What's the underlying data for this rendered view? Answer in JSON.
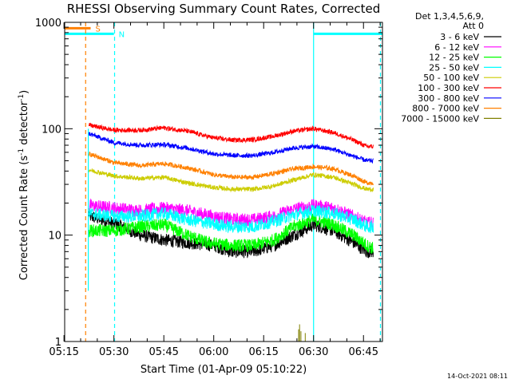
{
  "chart_data": {
    "type": "line",
    "title": "RHESSI Observing Summary Count Rates, Corrected",
    "xlabel": "Start Time (01-Apr-09 05:10:22)",
    "ylabel_main": "Corrected Count Rate (s",
    "ylabel_sup1": "-1",
    "ylabel_mid": " detector",
    "ylabel_sup2": "-1",
    "ylabel_end": ")",
    "y_scale": "log",
    "ylim": [
      1,
      1000
    ],
    "xlim_minutes": [
      5.2,
      100.7
    ],
    "x_ticks": [
      {
        "m": 5,
        "label": "05:15"
      },
      {
        "m": 20,
        "label": "05:30"
      },
      {
        "m": 35,
        "label": "05:45"
      },
      {
        "m": 50,
        "label": "06:00"
      },
      {
        "m": 65,
        "label": "06:15"
      },
      {
        "m": 80,
        "label": "06:30"
      },
      {
        "m": 95,
        "label": "06:45"
      }
    ],
    "y_ticks": [
      {
        "v": 1,
        "label": "1"
      },
      {
        "v": 10,
        "label": "10"
      },
      {
        "v": 100,
        "label": "100"
      },
      {
        "v": 1000,
        "label": "1000"
      }
    ],
    "legend_header": [
      "Det 1,3,4,5,6,9,",
      "Att 0"
    ],
    "legend_placement": "right",
    "series": [
      {
        "name": "3 - 6 keV",
        "color": "#000000",
        "points": [
          [
            12.5,
            16
          ],
          [
            13,
            15
          ],
          [
            20,
            13
          ],
          [
            28,
            10
          ],
          [
            35,
            9
          ],
          [
            42,
            8.5
          ],
          [
            50,
            8
          ],
          [
            55,
            7
          ],
          [
            62,
            7
          ],
          [
            68,
            8
          ],
          [
            74,
            10
          ],
          [
            80,
            12.5
          ],
          [
            86,
            11
          ],
          [
            92,
            8.5
          ],
          [
            96,
            7
          ],
          [
            98,
            7
          ]
        ]
      },
      {
        "name": "6 - 12 keV",
        "color": "#ff00ff",
        "points": [
          [
            12.5,
            19
          ],
          [
            20,
            18
          ],
          [
            28,
            17
          ],
          [
            35,
            18
          ],
          [
            42,
            17
          ],
          [
            50,
            15
          ],
          [
            56,
            14
          ],
          [
            62,
            14
          ],
          [
            68,
            15
          ],
          [
            74,
            17.5
          ],
          [
            80,
            19
          ],
          [
            86,
            18
          ],
          [
            92,
            15
          ],
          [
            96,
            13
          ],
          [
            98,
            13
          ]
        ]
      },
      {
        "name": "12 - 25 keV",
        "color": "#00ff00",
        "points": [
          [
            12.5,
            11
          ],
          [
            20,
            11
          ],
          [
            28,
            12
          ],
          [
            35,
            12.5
          ],
          [
            42,
            10
          ],
          [
            48,
            8.5
          ],
          [
            55,
            8
          ],
          [
            62,
            8
          ],
          [
            68,
            9
          ],
          [
            74,
            12
          ],
          [
            80,
            14
          ],
          [
            86,
            12.5
          ],
          [
            92,
            10
          ],
          [
            96,
            8
          ],
          [
            98,
            7.5
          ]
        ]
      },
      {
        "name": "25 - 50 keV",
        "color": "#00ffff",
        "points": [
          [
            12.5,
            16
          ],
          [
            20,
            15
          ],
          [
            28,
            15
          ],
          [
            35,
            16
          ],
          [
            42,
            14
          ],
          [
            48,
            13
          ],
          [
            55,
            12
          ],
          [
            62,
            12
          ],
          [
            68,
            13.5
          ],
          [
            74,
            15.5
          ],
          [
            80,
            17
          ],
          [
            86,
            16
          ],
          [
            92,
            14
          ],
          [
            96,
            12
          ],
          [
            98,
            12
          ]
        ]
      },
      {
        "name": "50 - 100 keV",
        "color": "#cccc00",
        "points": [
          [
            12.5,
            41
          ],
          [
            20,
            36
          ],
          [
            28,
            34
          ],
          [
            35,
            35
          ],
          [
            42,
            31
          ],
          [
            50,
            28
          ],
          [
            56,
            27
          ],
          [
            62,
            27
          ],
          [
            68,
            29
          ],
          [
            74,
            33
          ],
          [
            80,
            37
          ],
          [
            86,
            35
          ],
          [
            92,
            30
          ],
          [
            96,
            27
          ],
          [
            98,
            27
          ]
        ]
      },
      {
        "name": "100 - 300 keV",
        "color": "#ff0000",
        "points": [
          [
            12.5,
            108
          ],
          [
            20,
            97
          ],
          [
            28,
            97
          ],
          [
            35,
            102
          ],
          [
            42,
            95
          ],
          [
            50,
            82
          ],
          [
            56,
            78
          ],
          [
            62,
            79
          ],
          [
            68,
            85
          ],
          [
            74,
            95
          ],
          [
            80,
            100
          ],
          [
            86,
            92
          ],
          [
            92,
            78
          ],
          [
            96,
            68
          ],
          [
            98,
            68
          ]
        ]
      },
      {
        "name": "300 - 800 keV",
        "color": "#0000ff",
        "points": [
          [
            12.5,
            90
          ],
          [
            20,
            74
          ],
          [
            28,
            70
          ],
          [
            35,
            71
          ],
          [
            42,
            66
          ],
          [
            50,
            58
          ],
          [
            56,
            56
          ],
          [
            62,
            56
          ],
          [
            68,
            60
          ],
          [
            74,
            66
          ],
          [
            80,
            68
          ],
          [
            86,
            64
          ],
          [
            92,
            55
          ],
          [
            96,
            50
          ],
          [
            98,
            50
          ]
        ]
      },
      {
        "name": "800 - 7000 keV",
        "color": "#ff8000",
        "points": [
          [
            12.5,
            58
          ],
          [
            20,
            48
          ],
          [
            28,
            45
          ],
          [
            35,
            47
          ],
          [
            42,
            43
          ],
          [
            50,
            37
          ],
          [
            56,
            35
          ],
          [
            62,
            35
          ],
          [
            68,
            38
          ],
          [
            74,
            42
          ],
          [
            80,
            44
          ],
          [
            86,
            42
          ],
          [
            92,
            36
          ],
          [
            96,
            31
          ],
          [
            98,
            31
          ]
        ]
      },
      {
        "name": "7000 - 15000 keV",
        "color": "#808000",
        "points": [
          [
            75.5,
            1.3
          ],
          [
            75.8,
            1.45
          ],
          [
            76.2,
            1.25
          ],
          [
            77.5,
            1.2
          ]
        ]
      }
    ],
    "annotations": [
      {
        "type": "flag_bar",
        "label": "S",
        "color": "#ff8000",
        "x_range": [
          5.2,
          13
        ],
        "y": 880
      },
      {
        "type": "flag_bar",
        "label": "N",
        "color": "#00ffff",
        "x_range": [
          5.2,
          20
        ],
        "y": 780
      },
      {
        "type": "flag_bar",
        "label": "",
        "color": "#00ffff",
        "x_range": [
          80,
          100.7
        ],
        "y": 780
      },
      {
        "type": "vline",
        "x": 11.5,
        "color": "#ff8000",
        "dashed": true
      },
      {
        "type": "vline",
        "x": 20.2,
        "color": "#00ffff",
        "dashed": true
      },
      {
        "type": "vline",
        "x": 80,
        "color": "#00ffff",
        "dashed": false
      },
      {
        "type": "vline",
        "x": 100.1,
        "color": "#00ffff",
        "dashed": true
      },
      {
        "type": "vline",
        "x": 12.3,
        "color": "#00ffff",
        "dashed": false,
        "y_range": [
          3,
          100
        ]
      }
    ],
    "grid": false
  },
  "footer": {
    "timestamp": "14-Oct-2021 08:11"
  }
}
